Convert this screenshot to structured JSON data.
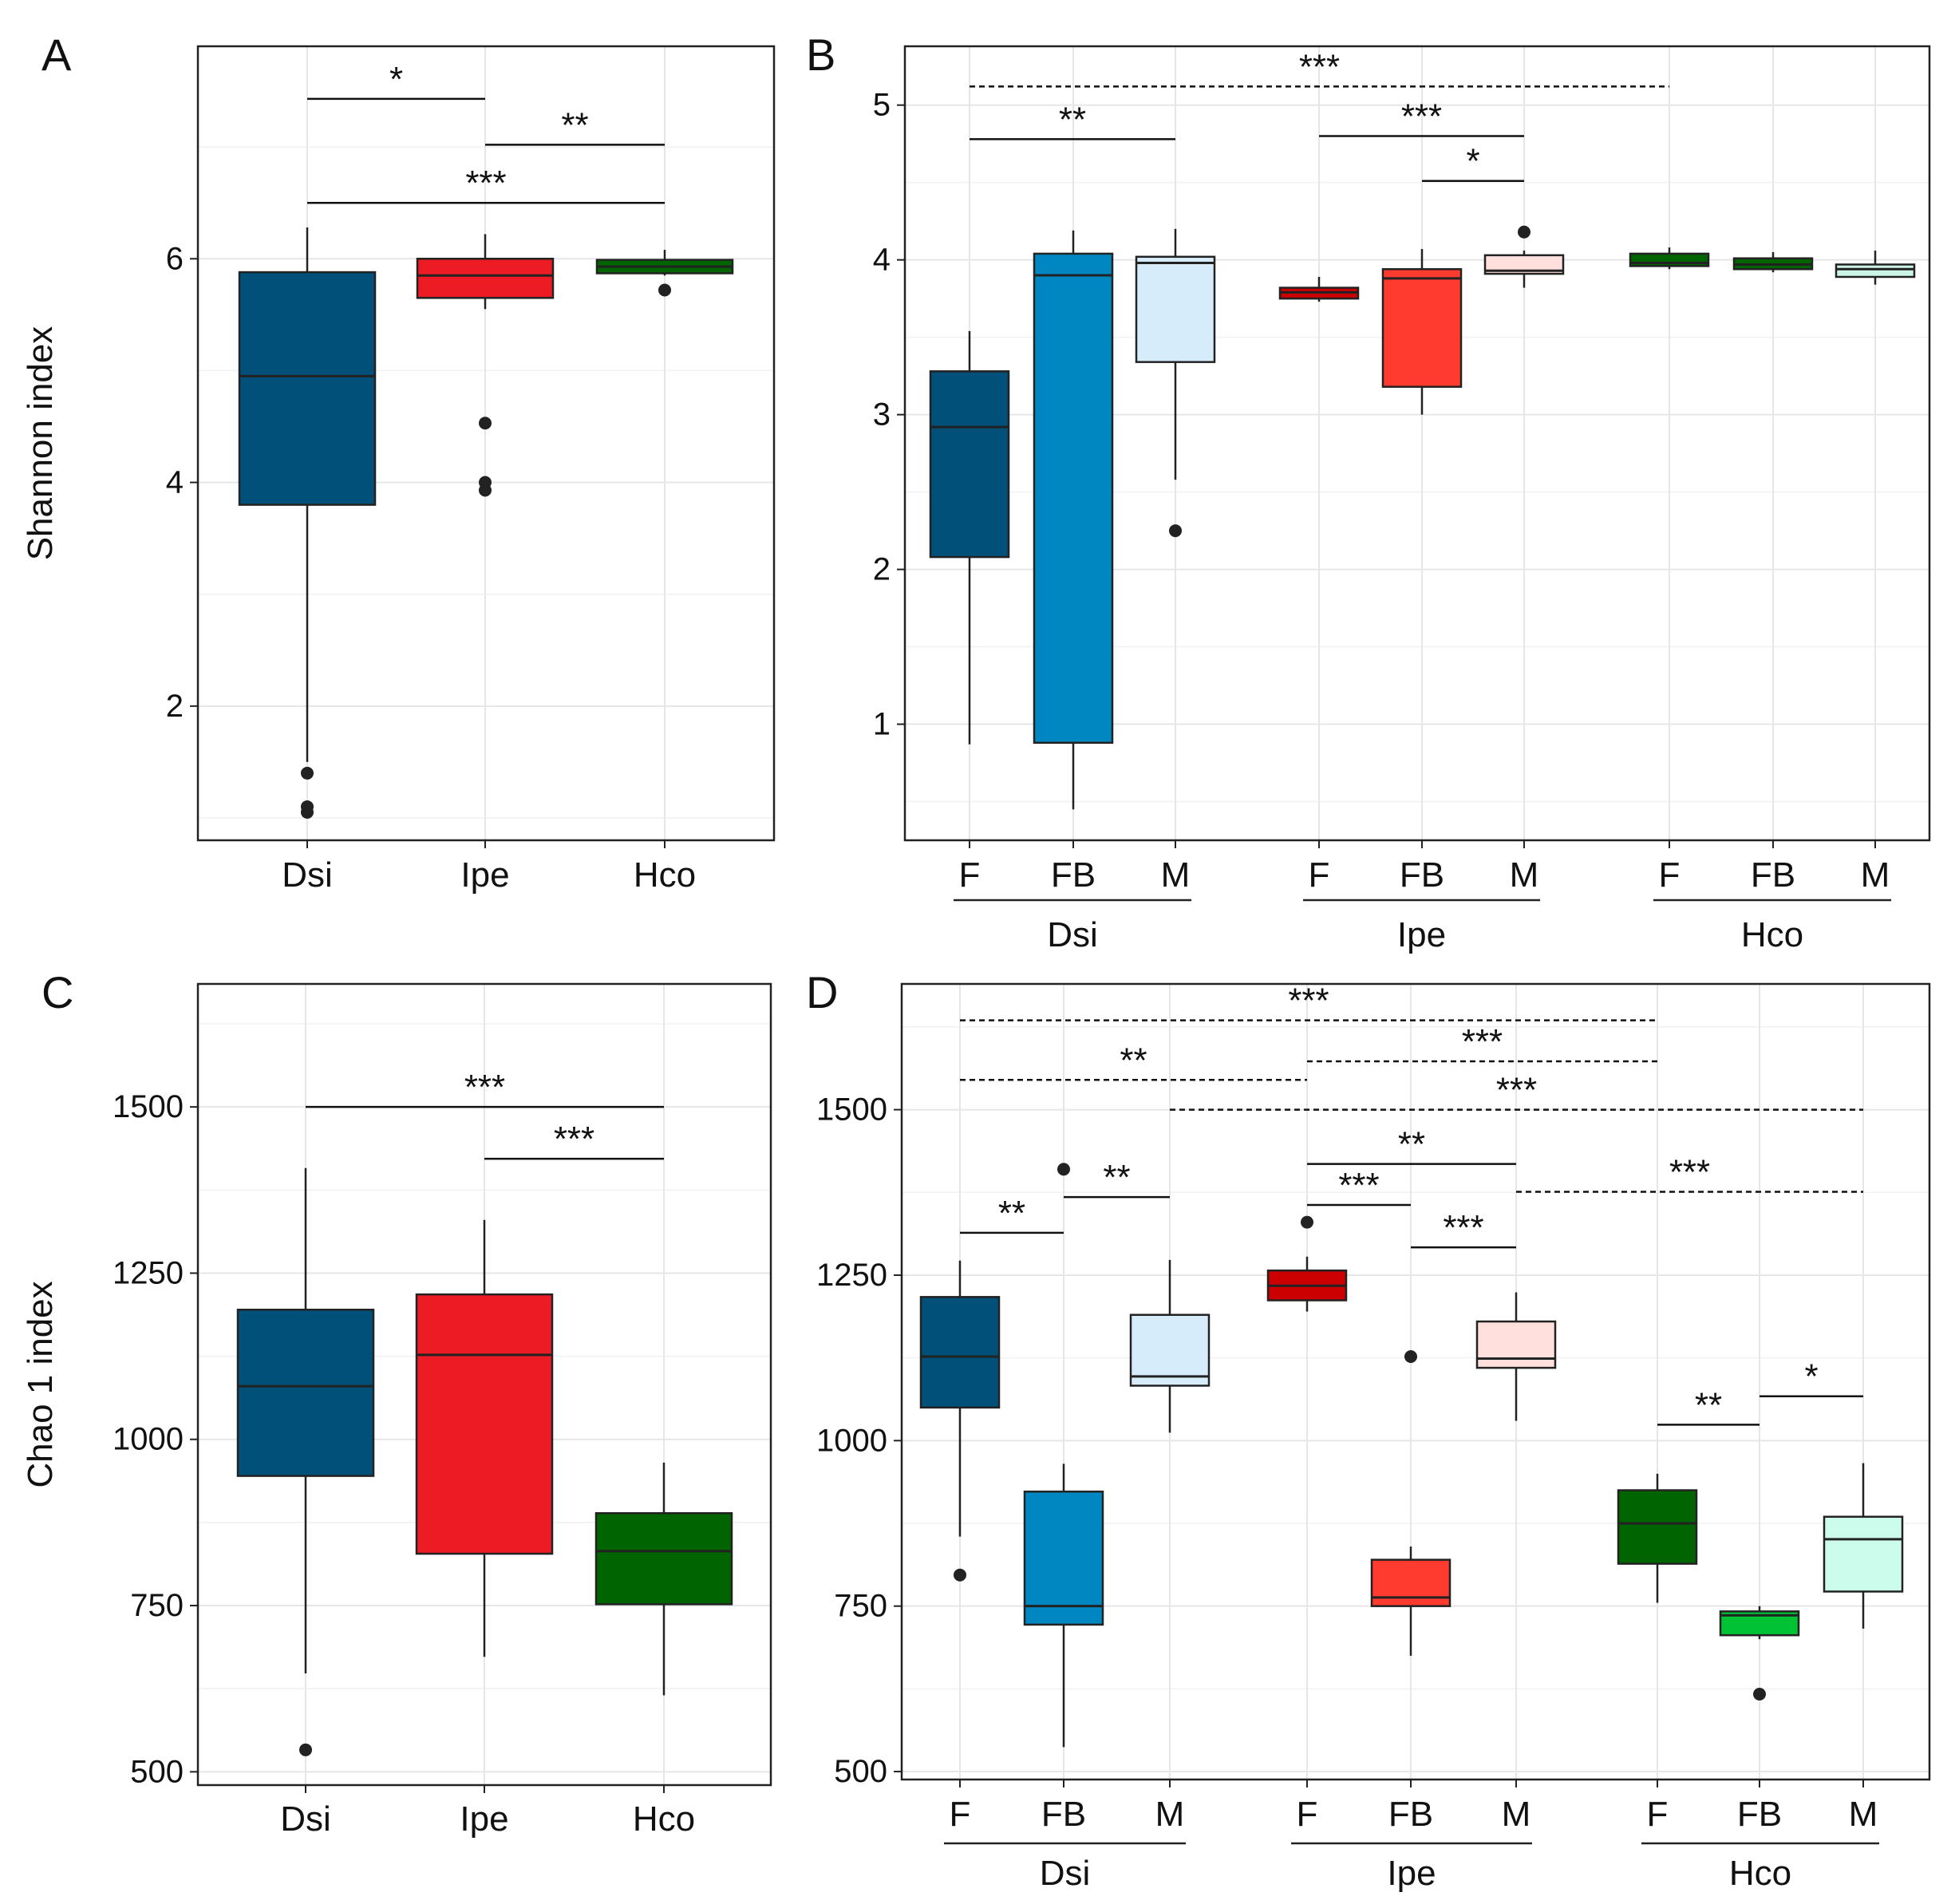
{
  "chart_data": [
    {
      "type": "box",
      "panel_label": "A",
      "ylabel": "Shannon index",
      "ylim": [
        0.8,
        7.9
      ],
      "yticks": [
        2,
        4,
        6
      ],
      "grid": true,
      "groups": [
        {
          "label": "Dsi",
          "q1": 3.8,
          "median": 4.95,
          "q3": 5.88,
          "whisker_low": 1.5,
          "whisker_high": 6.28,
          "outliers": [
            1.4,
            1.1,
            1.05
          ],
          "fill": "#00507a"
        },
        {
          "label": "Ipe",
          "q1": 5.65,
          "median": 5.85,
          "q3": 6.0,
          "whisker_low": 5.55,
          "whisker_high": 6.22,
          "outliers": [
            4.53,
            4.0,
            3.93
          ],
          "fill": "#ed1c24"
        },
        {
          "label": "Hco",
          "q1": 5.87,
          "median": 5.93,
          "q3": 5.99,
          "whisker_low": 5.85,
          "whisker_high": 6.08,
          "outliers": [
            5.72
          ],
          "fill": "#006400"
        }
      ],
      "brackets": [
        {
          "from": 0,
          "to": 1,
          "y": 7.43,
          "label": "*",
          "dashed": false
        },
        {
          "from": 1,
          "to": 2,
          "y": 7.02,
          "label": "**",
          "dashed": false
        },
        {
          "from": 0,
          "to": 2,
          "y": 6.5,
          "label": "***",
          "dashed": false
        }
      ]
    },
    {
      "type": "box",
      "panel_label": "B",
      "ylabel": "",
      "ylim": [
        0.25,
        5.38
      ],
      "yticks": [
        1,
        2,
        3,
        4,
        5
      ],
      "grid": true,
      "groups": [
        {
          "label": "F",
          "q1": 2.08,
          "median": 2.92,
          "q3": 3.28,
          "whisker_low": 0.87,
          "whisker_high": 3.54,
          "outliers": [],
          "fill": "#00507a"
        },
        {
          "label": "FB",
          "q1": 0.88,
          "median": 3.9,
          "q3": 4.04,
          "whisker_low": 0.45,
          "whisker_high": 4.19,
          "outliers": [],
          "fill": "#0087c1"
        },
        {
          "label": "M",
          "q1": 3.34,
          "median": 3.98,
          "q3": 4.02,
          "whisker_low": 2.58,
          "whisker_high": 4.2,
          "outliers": [
            2.25
          ],
          "fill": "#d6ecfb"
        },
        {
          "label": "F",
          "q1": 3.75,
          "median": 3.79,
          "q3": 3.82,
          "whisker_low": 3.73,
          "whisker_high": 3.89,
          "outliers": [],
          "fill": "#cc0000"
        },
        {
          "label": "FB",
          "q1": 3.18,
          "median": 3.88,
          "q3": 3.94,
          "whisker_low": 3.0,
          "whisker_high": 4.07,
          "outliers": [],
          "fill": "#ff3b30"
        },
        {
          "label": "M",
          "q1": 3.91,
          "median": 3.93,
          "q3": 4.03,
          "whisker_low": 3.82,
          "whisker_high": 4.06,
          "outliers": [
            4.18
          ],
          "fill": "#ffe0dc"
        },
        {
          "label": "F",
          "q1": 3.96,
          "median": 3.98,
          "q3": 4.04,
          "whisker_low": 3.94,
          "whisker_high": 4.08,
          "outliers": [],
          "fill": "#006400"
        },
        {
          "label": "FB",
          "q1": 3.94,
          "median": 3.97,
          "q3": 4.01,
          "whisker_low": 3.92,
          "whisker_high": 4.05,
          "outliers": [],
          "fill": "#006400"
        },
        {
          "label": "M",
          "q1": 3.89,
          "median": 3.94,
          "q3": 3.97,
          "whisker_low": 3.84,
          "whisker_high": 4.06,
          "outliers": [],
          "fill": "#ccf5e8"
        }
      ],
      "brackets": [
        {
          "from": 0,
          "to": 6,
          "y": 5.12,
          "label": "***",
          "dashed": true
        },
        {
          "from": 0,
          "to": 2,
          "y": 4.78,
          "label": "**",
          "dashed": false
        },
        {
          "from": 3,
          "to": 5,
          "y": 4.8,
          "label": "***",
          "dashed": false
        },
        {
          "from": 4,
          "to": 5,
          "y": 4.51,
          "label": "*",
          "dashed": false
        }
      ],
      "species": [
        "Dsi",
        "Ipe",
        "Hco"
      ]
    },
    {
      "type": "box",
      "panel_label": "C",
      "ylabel": "Chao 1 index",
      "ylim": [
        480,
        1685
      ],
      "yticks": [
        500,
        750,
        1000,
        1250,
        1500
      ],
      "grid": true,
      "groups": [
        {
          "label": "Dsi",
          "q1": 945,
          "median": 1080,
          "q3": 1195,
          "whisker_low": 648,
          "whisker_high": 1408,
          "outliers": [
            533
          ],
          "fill": "#00507a"
        },
        {
          "label": "Ipe",
          "q1": 828,
          "median": 1127,
          "q3": 1218,
          "whisker_low": 673,
          "whisker_high": 1330,
          "outliers": [],
          "fill": "#ed1c24"
        },
        {
          "label": "Hco",
          "q1": 752,
          "median": 832,
          "q3": 889,
          "whisker_low": 615,
          "whisker_high": 965,
          "outliers": [],
          "fill": "#006400"
        }
      ],
      "brackets": [
        {
          "from": 0,
          "to": 2,
          "y": 1500,
          "label": "***",
          "dashed": false
        },
        {
          "from": 1,
          "to": 2,
          "y": 1422,
          "label": "***",
          "dashed": false
        }
      ]
    },
    {
      "type": "box",
      "panel_label": "D",
      "ylabel": "",
      "ylim": [
        488,
        1690
      ],
      "yticks": [
        500,
        750,
        1000,
        1250,
        1500
      ],
      "grid": true,
      "groups": [
        {
          "label": "F",
          "q1": 1050,
          "median": 1127,
          "q3": 1217,
          "whisker_low": 855,
          "whisker_high": 1272,
          "outliers": [
            797
          ],
          "fill": "#00507a"
        },
        {
          "label": "FB",
          "q1": 722,
          "median": 750,
          "q3": 923,
          "whisker_low": 537,
          "whisker_high": 965,
          "outliers": [
            1410
          ],
          "fill": "#0087c1"
        },
        {
          "label": "M",
          "q1": 1083,
          "median": 1097,
          "q3": 1190,
          "whisker_low": 1012,
          "whisker_high": 1273,
          "outliers": [],
          "fill": "#d6ecfb"
        },
        {
          "label": "F",
          "q1": 1212,
          "median": 1234,
          "q3": 1257,
          "whisker_low": 1195,
          "whisker_high": 1278,
          "outliers": [
            1330
          ],
          "fill": "#cc0000"
        },
        {
          "label": "FB",
          "q1": 750,
          "median": 763,
          "q3": 820,
          "whisker_low": 675,
          "whisker_high": 840,
          "outliers": [
            1127
          ],
          "fill": "#ff3b30"
        },
        {
          "label": "M",
          "q1": 1110,
          "median": 1124,
          "q3": 1180,
          "whisker_low": 1030,
          "whisker_high": 1224,
          "outliers": [],
          "fill": "#ffe0dc"
        },
        {
          "label": "F",
          "q1": 814,
          "median": 875,
          "q3": 925,
          "whisker_low": 755,
          "whisker_high": 950,
          "outliers": [],
          "fill": "#006400"
        },
        {
          "label": "FB",
          "q1": 706,
          "median": 736,
          "q3": 742,
          "whisker_low": 700,
          "whisker_high": 750,
          "outliers": [
            617
          ],
          "fill": "#00c234"
        },
        {
          "label": "M",
          "q1": 772,
          "median": 851,
          "q3": 885,
          "whisker_low": 716,
          "whisker_high": 966,
          "outliers": [],
          "fill": "#ccfcec"
        }
      ],
      "brackets": [
        {
          "from": 0,
          "to": 6,
          "y": 1635,
          "label": "***",
          "dashed": true
        },
        {
          "from": 0,
          "to": 3,
          "y": 1545,
          "label": "**",
          "dashed": true
        },
        {
          "from": 3,
          "to": 6,
          "y": 1573,
          "label": "***",
          "dashed": true
        },
        {
          "from": 2,
          "to": 8,
          "y": 1500,
          "label": "***",
          "dashed": true
        },
        {
          "from": 3,
          "to": 5,
          "y": 1418,
          "label": "**",
          "dashed": false
        },
        {
          "from": 3,
          "to": 4,
          "y": 1356,
          "label": "***",
          "dashed": false
        },
        {
          "from": 1,
          "to": 2,
          "y": 1368,
          "label": "**",
          "dashed": false
        },
        {
          "from": 0,
          "to": 1,
          "y": 1314,
          "label": "**",
          "dashed": false
        },
        {
          "from": 4,
          "to": 5,
          "y": 1292,
          "label": "***",
          "dashed": false
        },
        {
          "from": 5,
          "to": 8,
          "y": 1376,
          "label": "***",
          "dashed": true
        },
        {
          "from": 6,
          "to": 7,
          "y": 1024,
          "label": "**",
          "dashed": false
        },
        {
          "from": 7,
          "to": 8,
          "y": 1067,
          "label": "*",
          "dashed": false
        }
      ],
      "species": [
        "Dsi",
        "Ipe",
        "Hco"
      ]
    }
  ]
}
